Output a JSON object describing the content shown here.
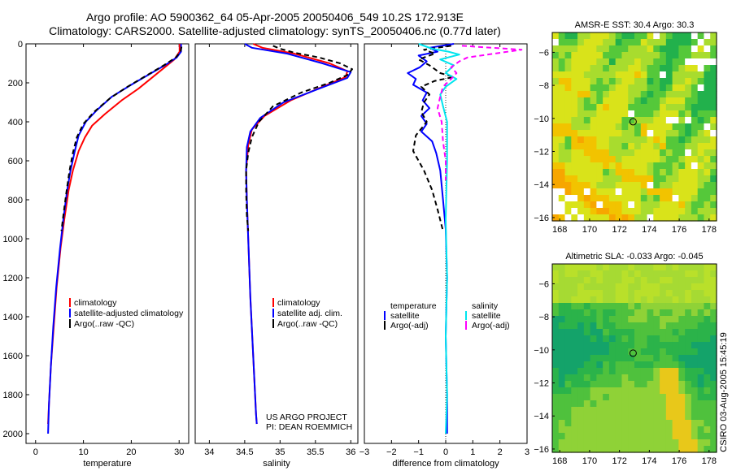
{
  "title_line1": "Argo profile: AO 5900362_64 05-Apr-2005 20050406_549 10.2S 172.913E",
  "title_line2": "Climatology: CARS2000. Satellite-adjusted climatology: synTS_20050406.nc (0.77d later)",
  "side_stamp": "CSIRO 03-Aug-2005 15:45:19",
  "colors": {
    "climatology": "#ff0000",
    "satellite": "#0000ff",
    "argo": "#000000",
    "salinity": "#00e5ee",
    "argo_adj_salinity": "#ff00ff"
  },
  "chart_data": [
    {
      "type": "line",
      "name": "temperature-panel",
      "xlabel": "temperature",
      "ylabel": "",
      "xlim": [
        -2,
        32
      ],
      "ylim": [
        2050,
        0
      ],
      "xticks": [
        0,
        10,
        20,
        30
      ],
      "yticks": [
        0,
        200,
        400,
        600,
        800,
        1000,
        1200,
        1400,
        1600,
        1800,
        2000
      ],
      "legend": [
        "climatology",
        "satellite-adjusted climatology",
        "Argo(..raw -QC)"
      ],
      "series": [
        {
          "name": "climatology",
          "style": "solid",
          "color_key": "climatology",
          "points": [
            [
              30.1,
              0
            ],
            [
              30.1,
              40
            ],
            [
              29.0,
              80
            ],
            [
              27.0,
              120
            ],
            [
              24.5,
              170
            ],
            [
              21.5,
              230
            ],
            [
              18.0,
              290
            ],
            [
              14.5,
              360
            ],
            [
              11.8,
              420
            ],
            [
              10.3,
              480
            ],
            [
              9.0,
              550
            ],
            [
              7.8,
              650
            ],
            [
              6.9,
              750
            ],
            [
              6.0,
              900
            ],
            [
              5.2,
              1050
            ],
            [
              4.4,
              1250
            ],
            [
              3.8,
              1450
            ],
            [
              3.2,
              1650
            ],
            [
              2.8,
              1850
            ],
            [
              2.6,
              1950
            ]
          ]
        },
        {
          "name": "satellite-adjusted climatology",
          "style": "solid",
          "color_key": "satellite",
          "points": [
            [
              30.4,
              0
            ],
            [
              30.4,
              40
            ],
            [
              29.5,
              70
            ],
            [
              27.0,
              110
            ],
            [
              23.5,
              160
            ],
            [
              20.0,
              210
            ],
            [
              16.0,
              270
            ],
            [
              12.8,
              340
            ],
            [
              10.5,
              400
            ],
            [
              9.0,
              470
            ],
            [
              8.2,
              550
            ],
            [
              7.3,
              650
            ],
            [
              6.6,
              750
            ],
            [
              5.8,
              900
            ],
            [
              5.1,
              1050
            ],
            [
              4.3,
              1250
            ],
            [
              3.7,
              1450
            ],
            [
              3.2,
              1650
            ],
            [
              2.8,
              1850
            ],
            [
              2.6,
              2000
            ]
          ]
        },
        {
          "name": "Argo(..raw -QC)",
          "style": "dashed",
          "color_key": "argo",
          "points": [
            [
              30.5,
              15
            ],
            [
              30.3,
              40
            ],
            [
              29.3,
              70
            ],
            [
              26.8,
              110
            ],
            [
              23.0,
              165
            ],
            [
              19.2,
              220
            ],
            [
              15.5,
              280
            ],
            [
              12.2,
              350
            ],
            [
              10.0,
              410
            ],
            [
              8.6,
              480
            ],
            [
              7.8,
              560
            ],
            [
              7.1,
              650
            ],
            [
              6.5,
              750
            ],
            [
              5.9,
              860
            ],
            [
              5.4,
              960
            ]
          ]
        }
      ]
    },
    {
      "type": "line",
      "name": "salinity-panel",
      "xlabel": "salinity",
      "ylabel": "",
      "xlim": [
        33.8,
        36.1
      ],
      "ylim": [
        2050,
        0
      ],
      "xticks": [
        34,
        34.5,
        35,
        35.5,
        36
      ],
      "yticks": [],
      "legend": [
        "climatology",
        "satellite adj. clim.",
        "Argo(..raw -QC)"
      ],
      "annotations": [
        "US ARGO PROJECT",
        "PI: DEAN ROEMMICH"
      ],
      "series": [
        {
          "name": "climatology",
          "style": "solid",
          "color_key": "climatology",
          "points": [
            [
              34.62,
              0
            ],
            [
              34.75,
              20
            ],
            [
              35.2,
              50
            ],
            [
              35.7,
              100
            ],
            [
              35.95,
              140
            ],
            [
              35.93,
              170
            ],
            [
              35.6,
              220
            ],
            [
              35.15,
              290
            ],
            [
              34.78,
              370
            ],
            [
              34.6,
              440
            ],
            [
              34.55,
              520
            ],
            [
              34.52,
              650
            ],
            [
              34.53,
              800
            ],
            [
              34.55,
              1000
            ],
            [
              34.58,
              1300
            ],
            [
              34.62,
              1600
            ],
            [
              34.66,
              1900
            ],
            [
              34.67,
              1950
            ]
          ]
        },
        {
          "name": "satellite adj. clim.",
          "style": "solid",
          "color_key": "satellite",
          "points": [
            [
              34.5,
              0
            ],
            [
              34.6,
              20
            ],
            [
              35.1,
              50
            ],
            [
              35.6,
              100
            ],
            [
              36.0,
              145
            ],
            [
              35.95,
              175
            ],
            [
              35.55,
              230
            ],
            [
              35.05,
              300
            ],
            [
              34.72,
              380
            ],
            [
              34.58,
              450
            ],
            [
              34.53,
              530
            ],
            [
              34.52,
              650
            ],
            [
              34.53,
              800
            ],
            [
              34.55,
              1000
            ],
            [
              34.58,
              1300
            ],
            [
              34.62,
              1600
            ],
            [
              34.66,
              1900
            ],
            [
              34.67,
              1950
            ]
          ]
        },
        {
          "name": "Argo(..raw -QC)",
          "style": "dashed",
          "color_key": "argo",
          "points": [
            [
              34.9,
              10
            ],
            [
              35.0,
              25
            ],
            [
              35.2,
              45
            ],
            [
              35.55,
              70
            ],
            [
              35.85,
              100
            ],
            [
              36.02,
              130
            ],
            [
              35.95,
              160
            ],
            [
              35.7,
              200
            ],
            [
              35.3,
              250
            ],
            [
              34.9,
              320
            ],
            [
              34.7,
              400
            ],
            [
              34.6,
              480
            ],
            [
              34.55,
              560
            ],
            [
              34.52,
              650
            ],
            [
              34.52,
              760
            ],
            [
              34.53,
              880
            ],
            [
              34.55,
              960
            ]
          ]
        }
      ]
    },
    {
      "type": "line",
      "name": "difference-panel",
      "xlabel": "difference from climatology",
      "ylabel": "",
      "xlim": [
        -3,
        3
      ],
      "ylim": [
        2050,
        0
      ],
      "xticks": [
        -3,
        -2,
        -1,
        0,
        1,
        2,
        3
      ],
      "yticks": [],
      "legend_left": [
        "temperature",
        "satellite",
        "Argo(-adj)"
      ],
      "legend_right": [
        "salinity",
        "satellite",
        "Argo(-adj)"
      ],
      "series": [
        {
          "name": "temperature satellite",
          "style": "solid",
          "color_key": "satellite",
          "points": [
            [
              0.3,
              0
            ],
            [
              -0.6,
              20
            ],
            [
              -0.3,
              40
            ],
            [
              -1.0,
              60
            ],
            [
              -0.7,
              90
            ],
            [
              -0.95,
              120
            ],
            [
              -1.4,
              150
            ],
            [
              -1.1,
              180
            ],
            [
              -1.2,
              210
            ],
            [
              -0.7,
              250
            ],
            [
              -0.85,
              290
            ],
            [
              -0.6,
              330
            ],
            [
              -0.9,
              370
            ],
            [
              -0.7,
              410
            ],
            [
              -0.9,
              450
            ],
            [
              -0.5,
              500
            ],
            [
              -0.35,
              560
            ],
            [
              -0.2,
              650
            ],
            [
              -0.1,
              800
            ],
            [
              0.0,
              950
            ],
            [
              0.05,
              1200
            ],
            [
              0.0,
              1500
            ],
            [
              0.05,
              1800
            ],
            [
              0.05,
              2000
            ]
          ]
        },
        {
          "name": "temperature Argo(-adj)",
          "style": "dashed",
          "color_key": "argo",
          "points": [
            [
              0.2,
              10
            ],
            [
              -0.8,
              30
            ],
            [
              -0.4,
              50
            ],
            [
              -1.0,
              80
            ],
            [
              -0.6,
              110
            ],
            [
              -0.2,
              150
            ],
            [
              0.3,
              170
            ],
            [
              -0.4,
              190
            ],
            [
              -0.9,
              220
            ],
            [
              -0.6,
              260
            ],
            [
              -0.8,
              300
            ],
            [
              -0.9,
              350
            ],
            [
              -0.7,
              400
            ],
            [
              -1.1,
              470
            ],
            [
              -1.2,
              550
            ],
            [
              -0.8,
              650
            ],
            [
              -0.5,
              750
            ],
            [
              -0.3,
              850
            ],
            [
              -0.1,
              960
            ]
          ]
        },
        {
          "name": "salinity satellite",
          "style": "solid",
          "color_key": "salinity",
          "points": [
            [
              -1.0,
              0
            ],
            [
              -0.5,
              25
            ],
            [
              0.1,
              40
            ],
            [
              0.5,
              55
            ],
            [
              -0.2,
              80
            ],
            [
              0.3,
              110
            ],
            [
              0.0,
              150
            ],
            [
              0.4,
              180
            ],
            [
              0.0,
              220
            ],
            [
              -0.2,
              260
            ],
            [
              -0.1,
              320
            ],
            [
              0.05,
              400
            ],
            [
              0.05,
              600
            ],
            [
              0.0,
              900
            ],
            [
              0.05,
              1200
            ],
            [
              0.0,
              1500
            ],
            [
              0.05,
              1800
            ],
            [
              0.0,
              2000
            ]
          ]
        },
        {
          "name": "salinity Argo(-adj)",
          "style": "dashed",
          "color_key": "argo_adj_salinity",
          "points": [
            [
              0.6,
              10
            ],
            [
              2.8,
              30
            ],
            [
              1.8,
              50
            ],
            [
              0.8,
              70
            ],
            [
              0.5,
              90
            ],
            [
              0.2,
              120
            ],
            [
              0.4,
              150
            ],
            [
              0.2,
              180
            ],
            [
              -0.1,
              220
            ],
            [
              -0.2,
              270
            ],
            [
              -0.3,
              330
            ],
            [
              -0.15,
              400
            ],
            [
              -0.1,
              500
            ],
            [
              0.0,
              600
            ],
            [
              0.0,
              700
            ]
          ]
        }
      ]
    },
    {
      "type": "heatmap",
      "name": "sst-map",
      "title": "AMSR-E SST: 30.4 Argo: 30.3",
      "xlim": [
        167.5,
        178.5
      ],
      "ylim": [
        -16.2,
        -4.8
      ],
      "xticks": [
        168,
        170,
        172,
        174,
        176,
        178
      ],
      "yticks": [
        -6,
        -8,
        -10,
        -12,
        -14,
        -16
      ],
      "marker": {
        "lon": 172.913,
        "lat": -10.2
      }
    },
    {
      "type": "heatmap",
      "name": "sla-map",
      "title": "Altimetric SLA: -0.033 Argo: -0.045",
      "xlim": [
        167.5,
        178.5
      ],
      "ylim": [
        -16.2,
        -4.8
      ],
      "xticks": [
        168,
        170,
        172,
        174,
        176,
        178
      ],
      "yticks": [
        -6,
        -8,
        -10,
        -12,
        -14,
        -16
      ],
      "marker": {
        "lon": 172.913,
        "lat": -10.2
      }
    }
  ]
}
